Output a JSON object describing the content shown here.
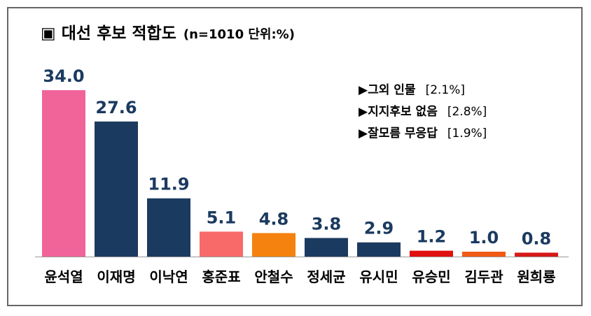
{
  "chart_data": {
    "type": "bar",
    "title": "▣ 대선 후보 적합도",
    "subtitle": "(n=1010 단위:%)",
    "categories": [
      "윤석열",
      "이재명",
      "이낙연",
      "홍준표",
      "안철수",
      "정세균",
      "유시민",
      "유승민",
      "김두관",
      "원희룡"
    ],
    "values": [
      34.0,
      27.6,
      11.9,
      5.1,
      4.8,
      3.8,
      2.9,
      1.2,
      1.0,
      0.8
    ],
    "colors": [
      "#f0649a",
      "#1b3a60",
      "#1b3a60",
      "#f86a6a",
      "#f5820f",
      "#1b3a60",
      "#1b3a60",
      "#e01010",
      "#f05a14",
      "#d81818"
    ],
    "value_labels": [
      "34.0",
      "27.6",
      "11.9",
      "5.1",
      "4.8",
      "3.8",
      "2.9",
      "1.2",
      "1.0",
      "0.8"
    ],
    "ylim": [
      0,
      34
    ],
    "xlabel": "",
    "ylabel": "",
    "annotations": [
      {
        "label": "▶그외 인물",
        "value": "[2.1%]"
      },
      {
        "label": "▶지지후보 없음",
        "value": "[2.8%]"
      },
      {
        "label": "▶잘모름 무응답",
        "value": "[1.9%]"
      }
    ]
  }
}
